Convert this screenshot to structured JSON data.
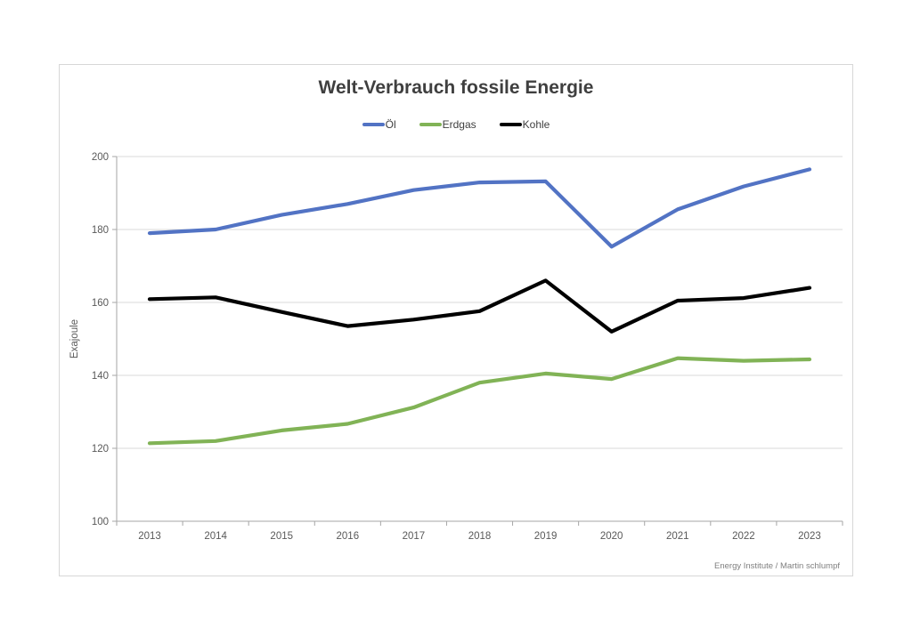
{
  "chart_data": {
    "type": "line",
    "title": "Welt-Verbrauch fossile Energie",
    "ylabel": "Exajoule",
    "xlabel": "",
    "source": "Energy Institute / Martin schlumpf",
    "categories": [
      "2013",
      "2014",
      "2015",
      "2016",
      "2017",
      "2018",
      "2019",
      "2020",
      "2021",
      "2022",
      "2023"
    ],
    "series": [
      {
        "name": "Öl",
        "color": "#5273c4",
        "values": [
          179.0,
          180.0,
          184.0,
          187.0,
          190.8,
          192.9,
          193.2,
          175.3,
          185.5,
          191.8,
          196.5
        ]
      },
      {
        "name": "Erdgas",
        "color": "#81b356",
        "values": [
          121.4,
          122.0,
          124.9,
          126.7,
          131.2,
          138.0,
          140.5,
          139.0,
          144.7,
          144.0,
          144.4
        ]
      },
      {
        "name": "Kohle",
        "color": "#000000",
        "values": [
          160.9,
          161.4,
          157.4,
          153.5,
          155.3,
          157.6,
          166.0,
          152.0,
          160.5,
          161.2,
          164.0
        ]
      }
    ],
    "ylim": [
      100,
      200
    ],
    "ytick_step": 20,
    "grid": true,
    "legend_position": "top"
  },
  "style": {
    "grid_color": "#d9d9d9",
    "axis_color": "#a6a6a6",
    "tick_label_color": "#595959",
    "title_color": "#3f3f3f",
    "legend_text_color": "#404040",
    "source_text_color": "#7f7f7f",
    "background": "#ffffff"
  }
}
